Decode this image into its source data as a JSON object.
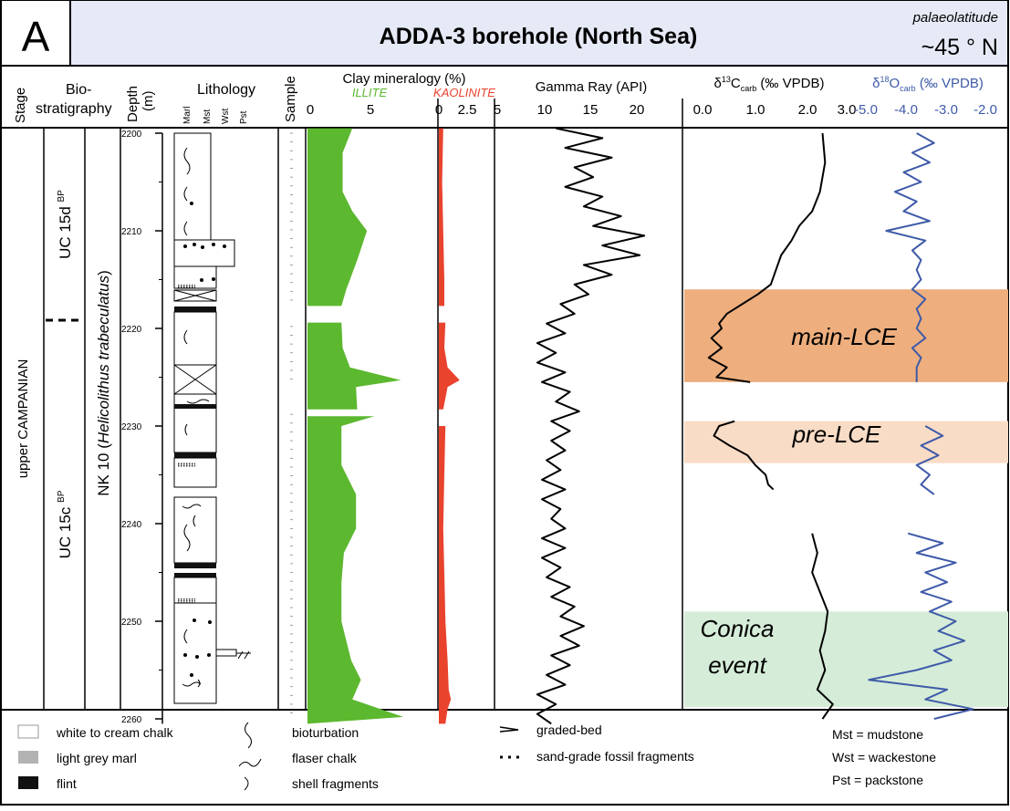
{
  "header": {
    "panel_letter": "A",
    "title": "ADDA-3 borehole (North Sea)",
    "lat_label": "palaeolatitude",
    "lat_value": "~45 ° N"
  },
  "columns": {
    "stage": "Stage",
    "bio1": "Bio-",
    "bio2": "stratigraphy",
    "depth1": "Depth",
    "depth2": "(m)",
    "lithology": "Lithology",
    "lith_ticks": [
      "Marl",
      "Mst",
      "Wst",
      "Pst"
    ],
    "sample": "Sample",
    "clay": "Clay mineralogy (%)",
    "illite": "ILLITE",
    "kaolinite": "KAOLINITE",
    "gamma": "Gamma Ray (API)",
    "d13c_main": "δ",
    "d13c_sup": "13",
    "d13c_c": "C",
    "d13c_sub": "carb",
    "d13c_unit": " (‰ VPDB)",
    "d18o_main": "δ",
    "d18o_sup": "18",
    "d18o_o": "O",
    "d18o_sub": "carb",
    "d18o_unit": " (‰ VPDB)"
  },
  "strat": {
    "stage": "upper CAMPANIAN",
    "uc15d": "UC 15d",
    "uc15c": "UC 15c",
    "bp": "BP",
    "nk10": "NK 10 (",
    "nk10_species": "Helicolithus trabeculatus",
    "nk10_close": ")"
  },
  "depth_ticks": [
    "2200",
    "2210",
    "2220",
    "2230",
    "2240",
    "2250",
    "2260"
  ],
  "events": {
    "main": "main-LCE",
    "pre": "pre-LCE",
    "conica1": "Conica",
    "conica2": "event"
  },
  "event_colors": {
    "main": "#eeae7d",
    "pre": "#f9dcc6",
    "conica": "#d5ecd8"
  },
  "series_colors": {
    "illite": "#5cb82f",
    "kaolinite": "#e9432e",
    "gamma": "#000000",
    "d13c": "#000000",
    "d18o": "#3e5aa8"
  },
  "chart_data": {
    "type": "line",
    "y_axis": {
      "label": "Depth (m)",
      "range": [
        2199,
        2261
      ],
      "inverted": true
    },
    "events": [
      {
        "name": "main-LCE",
        "depth_range": [
          2216,
          2225.5
        ]
      },
      {
        "name": "pre-LCE",
        "depth_range": [
          2229.5,
          2233.8
        ]
      },
      {
        "name": "Conica event",
        "depth_range": [
          2249,
          2258.8
        ]
      }
    ],
    "illite": {
      "xlim": [
        0,
        10
      ],
      "ticks": [
        "0",
        "5"
      ],
      "depth": [
        2199.5,
        2202,
        2206,
        2208,
        2210,
        2213,
        2216,
        2217.7,
        2219.4,
        2222,
        2224,
        2225.3,
        2226,
        2228.3,
        2229,
        2230,
        2234,
        2237,
        2240.5,
        2243,
        2246,
        2250,
        2254,
        2256,
        2258,
        2259.8,
        2260.5
      ],
      "value": [
        3.7,
        2.9,
        2.9,
        3.7,
        4.9,
        4.1,
        3.2,
        2.8,
        2.8,
        2.9,
        3.5,
        7.7,
        4.0,
        4.1,
        5.5,
        2.8,
        2.8,
        4.0,
        4.0,
        3.0,
        2.8,
        2.8,
        3.6,
        4.4,
        3.7,
        7.9,
        0
      ]
    },
    "kaolinite": {
      "xlim": [
        0,
        5
      ],
      "ticks": [
        "0",
        "2.5",
        "5"
      ],
      "depth": [
        2199.5,
        2205,
        2210,
        2215,
        2217.7,
        2219.4,
        2222,
        2224,
        2225.3,
        2226,
        2228.3,
        2230,
        2235,
        2240.5,
        2245,
        2250,
        2254,
        2257,
        2258,
        2259,
        2260.5
      ],
      "value": [
        0.4,
        0.3,
        0.4,
        0.5,
        0.5,
        0.6,
        0.5,
        0.8,
        1.9,
        0.8,
        0.4,
        0.6,
        0.5,
        0.4,
        0.5,
        0.6,
        0.8,
        0.9,
        1.1,
        0.8,
        0.6
      ]
    },
    "gamma": {
      "xlim": [
        5,
        25
      ],
      "ticks": [
        "10",
        "15",
        "20"
      ],
      "depth": [
        2199.5,
        2200.5,
        2201.5,
        2202.5,
        2203.5,
        2204.5,
        2205.5,
        2206.5,
        2207.5,
        2208.5,
        2209.5,
        2210.5,
        2211.5,
        2212.5,
        2213.5,
        2214.5,
        2215.5,
        2216.5,
        2217.5,
        2218.5,
        2219.5,
        2220.5,
        2221.5,
        2222.5,
        2223.5,
        2224.5,
        2225.5,
        2226.5,
        2227.5,
        2228.5,
        2229.5,
        2230.5,
        2231.5,
        2232.5,
        2233.5,
        2234.5,
        2235.5,
        2236.5,
        2237.5,
        2238.5,
        2239.5,
        2240.5,
        2241.5,
        2242.5,
        2243.5,
        2244.5,
        2245.5,
        2246.5,
        2247.5,
        2248.5,
        2249.5,
        2250.5,
        2251.5,
        2252.5,
        2253.5,
        2254.5,
        2255.5,
        2256.5,
        2257.5,
        2258.5,
        2259.5,
        2260.5
      ],
      "value": [
        11.5,
        16.5,
        12.5,
        17.5,
        13.5,
        15.5,
        12.5,
        16.5,
        14.5,
        18.5,
        15.5,
        21,
        16.5,
        20.5,
        14.5,
        17.5,
        13.5,
        15,
        12,
        13.5,
        10.5,
        12.5,
        9.5,
        11.5,
        9.5,
        12.5,
        10,
        13,
        11.5,
        14,
        11,
        13,
        11,
        12.5,
        10.5,
        12,
        10,
        12.5,
        10,
        12,
        11,
        12.5,
        10,
        12.5,
        10,
        12,
        10.5,
        13,
        11,
        13.5,
        12,
        14.5,
        12,
        14,
        11,
        13,
        10.5,
        12.5,
        9.5,
        11.5,
        9.5,
        11
      ]
    },
    "d13c": {
      "xlim": [
        0,
        3
      ],
      "ticks": [
        "0.0",
        "1.0",
        "2.0",
        "3.0"
      ],
      "depth": [
        2200,
        2203,
        2206,
        2208,
        2209.5,
        2211,
        2212.5,
        2214,
        2215.5,
        2216.5,
        2217.5,
        2218.5,
        2219.5,
        2220,
        2221,
        2222,
        2223,
        2224,
        2225,
        2225.5,
        2229.5,
        2230,
        2231,
        2232,
        2233,
        2234,
        2235,
        2236,
        2236.5,
        2241,
        2243,
        2245,
        2247,
        2249,
        2251,
        2253,
        2255,
        2257,
        2258.5,
        2260
      ],
      "value": [
        2.55,
        2.6,
        2.5,
        2.35,
        2.1,
        1.95,
        1.75,
        1.65,
        1.55,
        1.3,
        1.0,
        0.7,
        0.55,
        0.6,
        0.4,
        0.6,
        0.35,
        0.7,
        0.5,
        1.15,
        0.85,
        0.55,
        0.45,
        0.75,
        1.1,
        1.25,
        1.45,
        1.5,
        1.6,
        2.35,
        2.45,
        2.35,
        2.5,
        2.65,
        2.6,
        2.5,
        2.6,
        2.45,
        2.75,
        2.55
      ]
    },
    "d18o": {
      "xlim": [
        -5,
        -1.6
      ],
      "ticks": [
        "-5.0",
        "-4.0",
        "-3.0",
        "-2.0"
      ],
      "depth": [
        2200,
        2201,
        2202,
        2203,
        2204,
        2205,
        2206,
        2207,
        2208,
        2209,
        2210,
        2211,
        2212,
        2213,
        2214,
        2215,
        2216,
        2217,
        2218,
        2219,
        2220,
        2221,
        2222,
        2223,
        2224,
        2225.5,
        2230,
        2231,
        2232,
        2233,
        2234,
        2235,
        2236,
        2237,
        2241,
        2242,
        2243,
        2244,
        2245,
        2246,
        2247,
        2248,
        2249,
        2250,
        2251,
        2252,
        2253,
        2254,
        2255,
        2256,
        2257,
        2258,
        2259,
        2260
      ],
      "value": [
        -3.6,
        -3.2,
        -3.7,
        -3.3,
        -3.9,
        -3.5,
        -4.1,
        -3.6,
        -3.9,
        -3.3,
        -4.3,
        -3.4,
        -3.7,
        -3.5,
        -3.6,
        -3.5,
        -3.7,
        -3.4,
        -3.6,
        -3.5,
        -3.6,
        -3.4,
        -3.7,
        -3.5,
        -3.6,
        -3.6,
        -3.4,
        -3.0,
        -3.5,
        -3.1,
        -3.6,
        -3.3,
        -3.5,
        -3.2,
        -3.8,
        -3.0,
        -3.6,
        -2.7,
        -3.4,
        -2.9,
        -3.5,
        -2.8,
        -3.3,
        -2.7,
        -3.1,
        -2.5,
        -3.2,
        -2.8,
        -3.6,
        -4.7,
        -2.9,
        -3.4,
        -2.3,
        -3.2
      ]
    }
  },
  "legend": {
    "chalk": "white to cream chalk",
    "marl": "light grey marl",
    "flint": "flint",
    "bioturbation": "bioturbation",
    "flaser": "flaser chalk",
    "shell": "shell fragments",
    "graded": "graded-bed",
    "sand": "sand-grade fossil fragments",
    "mst": "Mst = mudstone",
    "wst": "Wst = wackestone",
    "pst": "Pst = packstone"
  }
}
